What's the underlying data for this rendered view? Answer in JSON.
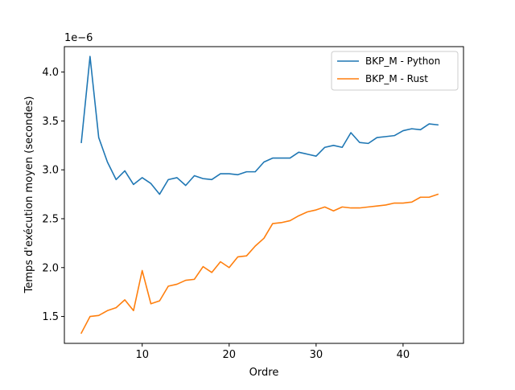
{
  "chart_data": {
    "type": "line",
    "title": "",
    "xlabel": "Ordre",
    "ylabel": "Temps d'exécution moyen (secondes)",
    "y_offset_text": "1e−6",
    "x_ticks": [
      10,
      20,
      30,
      40
    ],
    "y_ticks": [
      "1.5",
      "2.0",
      "2.5",
      "3.0",
      "3.5",
      "4.0"
    ],
    "y_tick_values": [
      1.5,
      2.0,
      2.5,
      3.0,
      3.5,
      4.0
    ],
    "xlim": [
      1.05,
      46.95
    ],
    "ylim": [
      1.225,
      4.26
    ],
    "legend_position": "upper right",
    "x": [
      3,
      4,
      5,
      6,
      7,
      8,
      9,
      10,
      11,
      12,
      13,
      14,
      15,
      16,
      17,
      18,
      19,
      20,
      21,
      22,
      23,
      24,
      25,
      26,
      27,
      28,
      29,
      30,
      31,
      32,
      33,
      34,
      35,
      36,
      37,
      38,
      39,
      40,
      41,
      42,
      43,
      44
    ],
    "series": [
      {
        "name": "BKP_M - Python",
        "color": "#1f77b4",
        "values": [
          3.28,
          4.16,
          3.33,
          3.08,
          2.9,
          2.99,
          2.85,
          2.92,
          2.86,
          2.75,
          2.9,
          2.92,
          2.84,
          2.94,
          2.91,
          2.9,
          2.96,
          2.96,
          2.95,
          2.98,
          2.98,
          3.08,
          3.12,
          3.12,
          3.12,
          3.18,
          3.16,
          3.14,
          3.23,
          3.25,
          3.23,
          3.38,
          3.28,
          3.27,
          3.33,
          3.34,
          3.35,
          3.4,
          3.42,
          3.41,
          3.47,
          3.46
        ]
      },
      {
        "name": "BKP_M - Rust",
        "color": "#ff7f0e",
        "values": [
          1.33,
          1.5,
          1.51,
          1.56,
          1.59,
          1.67,
          1.56,
          1.97,
          1.63,
          1.66,
          1.81,
          1.83,
          1.87,
          1.88,
          2.01,
          1.95,
          2.06,
          2.0,
          2.11,
          2.12,
          2.22,
          2.3,
          2.45,
          2.46,
          2.48,
          2.53,
          2.57,
          2.59,
          2.62,
          2.58,
          2.62,
          2.61,
          2.61,
          2.62,
          2.63,
          2.64,
          2.66,
          2.66,
          2.67,
          2.72,
          2.72,
          2.75
        ]
      }
    ]
  }
}
